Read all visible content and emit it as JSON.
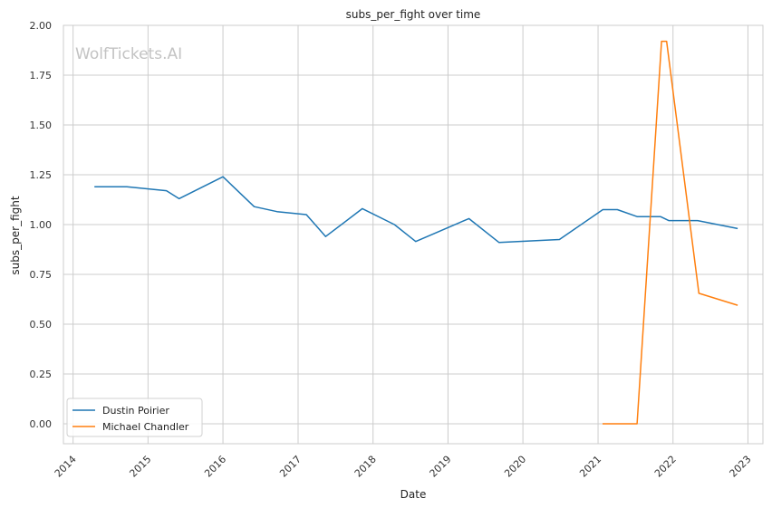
{
  "chart_data": {
    "type": "line",
    "title": "subs_per_fight over time",
    "xlabel": "Date",
    "ylabel": "subs_per_fight",
    "watermark": "WolfTickets.AI",
    "xlim": [
      "2013-11-15",
      "2023-03-15"
    ],
    "ylim": [
      -0.1,
      2.0
    ],
    "x_ticks": [
      "2014-01-01",
      "2015-01-01",
      "2016-01-01",
      "2017-01-01",
      "2018-01-01",
      "2019-01-01",
      "2020-01-01",
      "2021-01-01",
      "2022-01-01",
      "2023-01-01"
    ],
    "x_tick_labels": [
      "2014",
      "2015",
      "2016",
      "2017",
      "2018",
      "2019",
      "2020",
      "2021",
      "2022",
      "2023"
    ],
    "y_ticks": [
      0.0,
      0.25,
      0.5,
      0.75,
      1.0,
      1.25,
      1.5,
      1.75,
      2.0
    ],
    "y_tick_labels": [
      "0.00",
      "0.25",
      "0.50",
      "0.75",
      "1.00",
      "1.25",
      "1.50",
      "1.75",
      "2.00"
    ],
    "grid": true,
    "legend_position": "lower-left",
    "series": [
      {
        "name": "Dustin Poirier",
        "color": "#1f77b4",
        "points": [
          [
            "2014-04-15",
            1.19
          ],
          [
            "2014-09-20",
            1.19
          ],
          [
            "2015-04-01",
            1.17
          ],
          [
            "2015-06-01",
            1.13
          ],
          [
            "2016-01-01",
            1.24
          ],
          [
            "2016-06-01",
            1.09
          ],
          [
            "2016-09-20",
            1.065
          ],
          [
            "2017-02-10",
            1.05
          ],
          [
            "2017-05-15",
            0.94
          ],
          [
            "2017-11-10",
            1.08
          ],
          [
            "2018-04-15",
            1.0
          ],
          [
            "2018-07-28",
            0.915
          ],
          [
            "2019-04-13",
            1.03
          ],
          [
            "2019-09-07",
            0.91
          ],
          [
            "2020-06-27",
            0.925
          ],
          [
            "2021-01-24",
            1.075
          ],
          [
            "2021-04-05",
            1.075
          ],
          [
            "2021-07-10",
            1.04
          ],
          [
            "2021-11-01",
            1.04
          ],
          [
            "2021-12-11",
            1.02
          ],
          [
            "2022-05-01",
            1.02
          ],
          [
            "2022-11-12",
            0.98
          ]
        ]
      },
      {
        "name": "Michael Chandler",
        "color": "#ff7f0e",
        "points": [
          [
            "2021-01-23",
            0.0
          ],
          [
            "2021-07-10",
            0.0
          ],
          [
            "2021-11-06",
            1.92
          ],
          [
            "2021-12-01",
            1.92
          ],
          [
            "2022-05-07",
            0.655
          ],
          [
            "2022-11-12",
            0.595
          ]
        ]
      }
    ]
  }
}
